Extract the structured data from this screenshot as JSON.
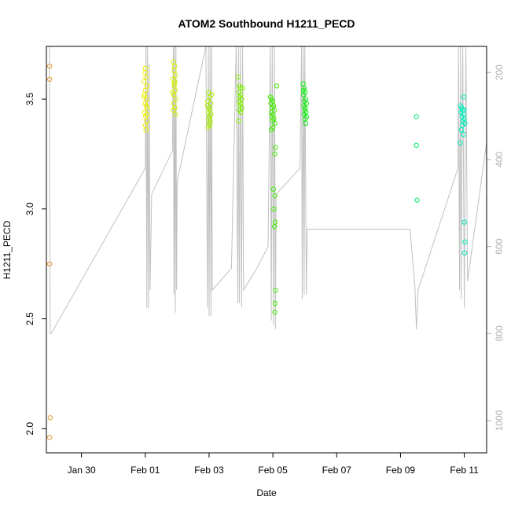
{
  "chart_data": {
    "type": "scatter",
    "title": "ATOM2 Southbound H1211_PECD",
    "xlabel": "Date",
    "ylabel": "H1211_PECD",
    "xlim": [
      -1.6,
      12.2
    ],
    "ylim": [
      1.89,
      3.74
    ],
    "x_ticks": [
      {
        "value": -0.5,
        "label": "Jan 30"
      },
      {
        "value": 1.5,
        "label": "Feb 01"
      },
      {
        "value": 3.5,
        "label": "Feb 03"
      },
      {
        "value": 5.5,
        "label": "Feb 05"
      },
      {
        "value": 7.5,
        "label": "Feb 07"
      },
      {
        "value": 9.5,
        "label": "Feb 09"
      },
      {
        "value": 11.5,
        "label": "Feb 11"
      }
    ],
    "y_ticks": [
      2.0,
      2.5,
      3.0,
      3.5
    ],
    "y2_ticks": [
      200,
      400,
      600,
      800,
      1000
    ],
    "y2_range": [
      1074,
      140
    ],
    "colors": {
      "axis": "#000000",
      "secondary_axis": "#b0b0b0",
      "altitude_line": "#c0c0c0"
    },
    "series": [
      {
        "color": "#e69a33",
        "points": [
          [
            -1.5,
            3.65
          ],
          [
            -1.5,
            3.59
          ],
          [
            -1.5,
            2.75
          ],
          [
            -1.48,
            2.05
          ],
          [
            -1.5,
            1.96
          ]
        ]
      },
      {
        "color": "#eef000",
        "points": [
          [
            1.5,
            3.64
          ],
          [
            1.52,
            3.6
          ],
          [
            1.46,
            3.58
          ],
          [
            1.55,
            3.56
          ],
          [
            1.5,
            3.54
          ],
          [
            1.48,
            3.52
          ],
          [
            1.53,
            3.5
          ],
          [
            1.5,
            3.48
          ],
          [
            1.56,
            3.46
          ],
          [
            1.47,
            3.44
          ],
          [
            1.51,
            3.42
          ],
          [
            1.54,
            3.4
          ],
          [
            1.5,
            3.38
          ],
          [
            1.52,
            3.36
          ],
          [
            1.49,
            3.62
          ],
          [
            1.53,
            3.47
          ],
          [
            1.46,
            3.51
          ],
          [
            1.55,
            3.43
          ]
        ]
      },
      {
        "color": "#d8f200",
        "points": [
          [
            2.38,
            3.67
          ],
          [
            2.42,
            3.65
          ],
          [
            2.4,
            3.63
          ],
          [
            2.45,
            3.61
          ],
          [
            2.37,
            3.59
          ],
          [
            2.43,
            3.58
          ],
          [
            2.41,
            3.56
          ],
          [
            2.44,
            3.54
          ],
          [
            2.39,
            3.52
          ],
          [
            2.46,
            3.5
          ],
          [
            2.4,
            3.48
          ],
          [
            2.43,
            3.46
          ],
          [
            2.38,
            3.45
          ],
          [
            2.45,
            3.43
          ],
          [
            2.41,
            3.57
          ],
          [
            2.36,
            3.53
          ]
        ]
      },
      {
        "color": "#a8ee00",
        "points": [
          [
            3.48,
            3.53
          ],
          [
            3.52,
            3.51
          ],
          [
            3.46,
            3.49
          ],
          [
            3.55,
            3.48
          ],
          [
            3.5,
            3.46
          ],
          [
            3.53,
            3.45
          ],
          [
            3.47,
            3.44
          ],
          [
            3.56,
            3.43
          ],
          [
            3.51,
            3.42
          ],
          [
            3.49,
            3.41
          ],
          [
            3.54,
            3.4
          ],
          [
            3.5,
            3.39
          ],
          [
            3.52,
            3.38
          ],
          [
            3.47,
            3.37
          ],
          [
            3.58,
            3.52
          ],
          [
            3.45,
            3.47
          ]
        ]
      },
      {
        "color": "#80ee00",
        "points": [
          [
            4.41,
            3.6
          ],
          [
            4.45,
            3.56
          ],
          [
            4.48,
            3.55
          ],
          [
            4.43,
            3.53
          ],
          [
            4.5,
            3.52
          ],
          [
            4.46,
            3.51
          ],
          [
            4.52,
            3.5
          ],
          [
            4.44,
            3.49
          ],
          [
            4.49,
            3.48
          ],
          [
            4.47,
            3.47
          ],
          [
            4.53,
            3.46
          ],
          [
            4.45,
            3.45
          ],
          [
            4.5,
            3.44
          ],
          [
            4.42,
            3.4
          ],
          [
            4.55,
            3.55
          ]
        ]
      },
      {
        "color": "#40ee00",
        "points": [
          [
            5.42,
            3.51
          ],
          [
            5.46,
            3.5
          ],
          [
            5.5,
            3.49
          ],
          [
            5.44,
            3.48
          ],
          [
            5.52,
            3.47
          ],
          [
            5.48,
            3.46
          ],
          [
            5.55,
            3.45
          ],
          [
            5.45,
            3.44
          ],
          [
            5.51,
            3.43
          ],
          [
            5.47,
            3.42
          ],
          [
            5.53,
            3.41
          ],
          [
            5.49,
            3.4
          ],
          [
            5.56,
            3.39
          ],
          [
            5.5,
            3.37
          ],
          [
            5.62,
            3.56
          ],
          [
            5.58,
            3.28
          ],
          [
            5.56,
            3.25
          ],
          [
            5.52,
            3.09
          ],
          [
            5.56,
            3.06
          ],
          [
            5.53,
            3.0
          ],
          [
            5.57,
            2.94
          ],
          [
            5.55,
            2.92
          ],
          [
            5.58,
            2.63
          ],
          [
            5.57,
            2.57
          ],
          [
            5.56,
            2.53
          ],
          [
            5.45,
            3.36
          ]
        ]
      },
      {
        "color": "#10ee10",
        "points": [
          [
            6.45,
            3.57
          ],
          [
            6.48,
            3.55
          ],
          [
            6.51,
            3.53
          ],
          [
            6.46,
            3.52
          ],
          [
            6.53,
            3.5
          ],
          [
            6.49,
            3.49
          ],
          [
            6.55,
            3.48
          ],
          [
            6.47,
            3.47
          ],
          [
            6.52,
            3.46
          ],
          [
            6.5,
            3.45
          ],
          [
            6.54,
            3.44
          ],
          [
            6.48,
            3.43
          ],
          [
            6.56,
            3.42
          ],
          [
            6.51,
            3.41
          ],
          [
            6.53,
            3.39
          ],
          [
            6.46,
            3.54
          ]
        ]
      },
      {
        "color": "#00ee70",
        "points": [
          [
            10.0,
            3.42
          ],
          [
            10.0,
            3.29
          ],
          [
            10.02,
            3.04
          ]
        ]
      },
      {
        "color": "#00eebb",
        "points": [
          [
            11.38,
            3.47
          ],
          [
            11.42,
            3.46
          ],
          [
            11.45,
            3.45
          ],
          [
            11.4,
            3.44
          ],
          [
            11.48,
            3.43
          ],
          [
            11.43,
            3.42
          ],
          [
            11.5,
            3.41
          ],
          [
            11.46,
            3.4
          ],
          [
            11.52,
            3.39
          ],
          [
            11.44,
            3.38
          ],
          [
            11.49,
            3.45
          ],
          [
            11.41,
            3.36
          ],
          [
            11.47,
            3.34
          ],
          [
            11.38,
            3.3
          ],
          [
            11.48,
            3.51
          ],
          [
            11.5,
            2.94
          ],
          [
            11.52,
            2.85
          ],
          [
            11.51,
            2.8
          ]
        ]
      }
    ],
    "altitude_line": [
      [
        -1.5,
        140
      ],
      [
        -1.5,
        470
      ],
      [
        -1.48,
        800
      ],
      [
        -1.45,
        800
      ],
      [
        1.5,
        420
      ],
      [
        1.52,
        140
      ],
      [
        1.55,
        742
      ],
      [
        1.57,
        140
      ],
      [
        1.6,
        742
      ],
      [
        1.62,
        180
      ],
      [
        1.65,
        700
      ],
      [
        1.7,
        480
      ],
      [
        2.35,
        380
      ],
      [
        2.38,
        140
      ],
      [
        2.4,
        710
      ],
      [
        2.42,
        140
      ],
      [
        2.44,
        752
      ],
      [
        2.46,
        140
      ],
      [
        2.48,
        700
      ],
      [
        2.5,
        450
      ],
      [
        3.4,
        140
      ],
      [
        3.45,
        740
      ],
      [
        3.48,
        140
      ],
      [
        3.5,
        760
      ],
      [
        3.53,
        140
      ],
      [
        3.56,
        760
      ],
      [
        3.58,
        140
      ],
      [
        3.6,
        700
      ],
      [
        4.2,
        650
      ],
      [
        4.35,
        140
      ],
      [
        4.4,
        730
      ],
      [
        4.42,
        140
      ],
      [
        4.45,
        730
      ],
      [
        4.48,
        140
      ],
      [
        4.52,
        740
      ],
      [
        4.55,
        140
      ],
      [
        4.58,
        700
      ],
      [
        5.0,
        650
      ],
      [
        5.35,
        600
      ],
      [
        5.42,
        140
      ],
      [
        5.45,
        770
      ],
      [
        5.48,
        140
      ],
      [
        5.52,
        780
      ],
      [
        5.55,
        140
      ],
      [
        5.58,
        790
      ],
      [
        5.6,
        480
      ],
      [
        6.35,
        420
      ],
      [
        6.4,
        140
      ],
      [
        6.42,
        720
      ],
      [
        6.45,
        140
      ],
      [
        6.48,
        710
      ],
      [
        6.5,
        140
      ],
      [
        6.55,
        710
      ],
      [
        6.58,
        560
      ],
      [
        9.8,
        560
      ],
      [
        9.95,
        690
      ],
      [
        10.0,
        790
      ],
      [
        10.05,
        700
      ],
      [
        11.3,
        420
      ],
      [
        11.32,
        140
      ],
      [
        11.35,
        700
      ],
      [
        11.38,
        140
      ],
      [
        11.4,
        720
      ],
      [
        11.45,
        140
      ],
      [
        11.5,
        740
      ],
      [
        11.55,
        140
      ],
      [
        11.6,
        680
      ],
      [
        12.2,
        360
      ]
    ]
  }
}
